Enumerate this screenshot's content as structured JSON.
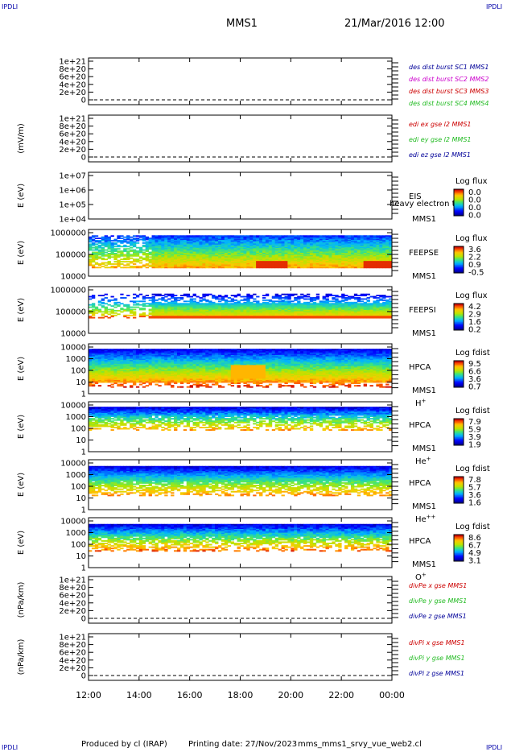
{
  "header": {
    "corner_left_top": "IPDLI",
    "corner_right_top": "IPDLI",
    "corner_left_bottom": "IPDLI",
    "corner_right_bottom": "IPDLI",
    "spacecraft": "MMS1",
    "date": "21/Mar/2016 12:00"
  },
  "footer": {
    "produced_by": "Produced by cl (IRAP)",
    "printing_date": "Printing date: 27/Nov/2023",
    "filename": "mms_mms1_srvy_vue_web2.cl"
  },
  "colors": {
    "red": "#cc0000",
    "green": "#22bb22",
    "blue": "#000099",
    "magenta": "#cc00cc"
  },
  "chart_data": {
    "type": "multi-panel",
    "x_tick_labels": [
      "12:00",
      "14:00",
      "16:00",
      "18:00",
      "20:00",
      "22:00",
      "00:00"
    ],
    "panels": [
      {
        "type": "line",
        "ylabel": "",
        "y_tick_labels": [
          "1e+21",
          "8e+20",
          "6e+20",
          "4e+20",
          "2e+20",
          "0"
        ],
        "legend": [
          {
            "text": "des dist burst SC1 MMS1",
            "color": "#000099"
          },
          {
            "text": "des dist burst SC2 MMS2",
            "color": "#cc00cc"
          },
          {
            "text": "des dist burst SC3 MMS3",
            "color": "#cc0000"
          },
          {
            "text": "des dist burst SC4 MMS4",
            "color": "#22bb22"
          }
        ]
      },
      {
        "type": "line",
        "ylabel": "(mV/m)",
        "y_tick_labels": [
          "1e+21",
          "8e+20",
          "6e+20",
          "4e+20",
          "2e+20",
          "0"
        ],
        "legend": [
          {
            "text": "edi ex gse l2 MMS1",
            "color": "#cc0000"
          },
          {
            "text": "edi ey gse l2 MMS1",
            "color": "#22bb22"
          },
          {
            "text": "edi ez gse l2 MMS1",
            "color": "#000099"
          }
        ]
      },
      {
        "type": "heatmap",
        "ylabel": "E (eV)",
        "y_tick_labels": [
          "1e+07",
          "1e+06",
          "1e+05",
          "1e+04"
        ],
        "instrument": "EIS",
        "overlap_text": "heavy electron tc",
        "spacecraft": "MMS1",
        "species": "",
        "colorbar_title": "Log flux",
        "colorbar_ticks": [
          "0.0",
          "0.0",
          "0.0",
          "0.0"
        ]
      },
      {
        "type": "heatmap",
        "ylabel": "E (eV)",
        "y_tick_labels": [
          "1000000",
          "100000",
          "10000"
        ],
        "instrument": "FEEPSE",
        "spacecraft": "MMS1",
        "species": "",
        "colorbar_title": "Log flux",
        "colorbar_ticks": [
          "3.6",
          "2.2",
          "0.9",
          "-0.5"
        ]
      },
      {
        "type": "heatmap",
        "ylabel": "E (eV)",
        "y_tick_labels": [
          "1000000",
          "100000",
          "10000"
        ],
        "instrument": "FEEPSI",
        "spacecraft": "MMS1",
        "species": "",
        "colorbar_title": "Log flux",
        "colorbar_ticks": [
          "4.2",
          "2.9",
          "1.6",
          "0.2"
        ]
      },
      {
        "type": "heatmap",
        "ylabel": "E (eV)",
        "y_tick_labels": [
          "10000",
          "1000",
          "100",
          "10",
          "1"
        ],
        "instrument": "HPCA",
        "spacecraft": "MMS1",
        "species": "H+",
        "colorbar_title": "Log fdist",
        "colorbar_ticks": [
          "9.5",
          "6.6",
          "3.6",
          "0.7"
        ]
      },
      {
        "type": "heatmap",
        "ylabel": "E (eV)",
        "y_tick_labels": [
          "10000",
          "1000",
          "100",
          "10",
          "1"
        ],
        "instrument": "HPCA",
        "spacecraft": "MMS1",
        "species": "He+",
        "colorbar_title": "Log fdist",
        "colorbar_ticks": [
          "7.9",
          "5.9",
          "3.9",
          "1.9"
        ]
      },
      {
        "type": "heatmap",
        "ylabel": "E (eV)",
        "y_tick_labels": [
          "10000",
          "1000",
          "100",
          "10",
          "1"
        ],
        "instrument": "HPCA",
        "spacecraft": "MMS1",
        "species": "He++",
        "colorbar_title": "Log fdist",
        "colorbar_ticks": [
          "7.8",
          "5.7",
          "3.6",
          "1.6"
        ]
      },
      {
        "type": "heatmap",
        "ylabel": "E (eV)",
        "y_tick_labels": [
          "10000",
          "1000",
          "100",
          "10",
          "1"
        ],
        "instrument": "HPCA",
        "spacecraft": "MMS1",
        "species": "O+",
        "colorbar_title": "Log fdist",
        "colorbar_ticks": [
          "8.6",
          "6.7",
          "4.9",
          "3.1"
        ]
      },
      {
        "type": "line",
        "ylabel": "(nPa/km)",
        "y_tick_labels": [
          "1e+21",
          "8e+20",
          "6e+20",
          "4e+20",
          "2e+20",
          "0"
        ],
        "legend": [
          {
            "text": "divPe x gse MMS1",
            "color": "#cc0000"
          },
          {
            "text": "divPe y gse MMS1",
            "color": "#22bb22"
          },
          {
            "text": "divPe z gse MMS1",
            "color": "#000099"
          }
        ]
      },
      {
        "type": "line",
        "ylabel": "(nPa/km)",
        "y_tick_labels": [
          "1e+21",
          "8e+20",
          "6e+20",
          "4e+20",
          "2e+20",
          "0"
        ],
        "legend": [
          {
            "text": "divPi x gse MMS1",
            "color": "#cc0000"
          },
          {
            "text": "divPi y gse MMS1",
            "color": "#22bb22"
          },
          {
            "text": "divPi z gse MMS1",
            "color": "#000099"
          }
        ]
      }
    ]
  }
}
